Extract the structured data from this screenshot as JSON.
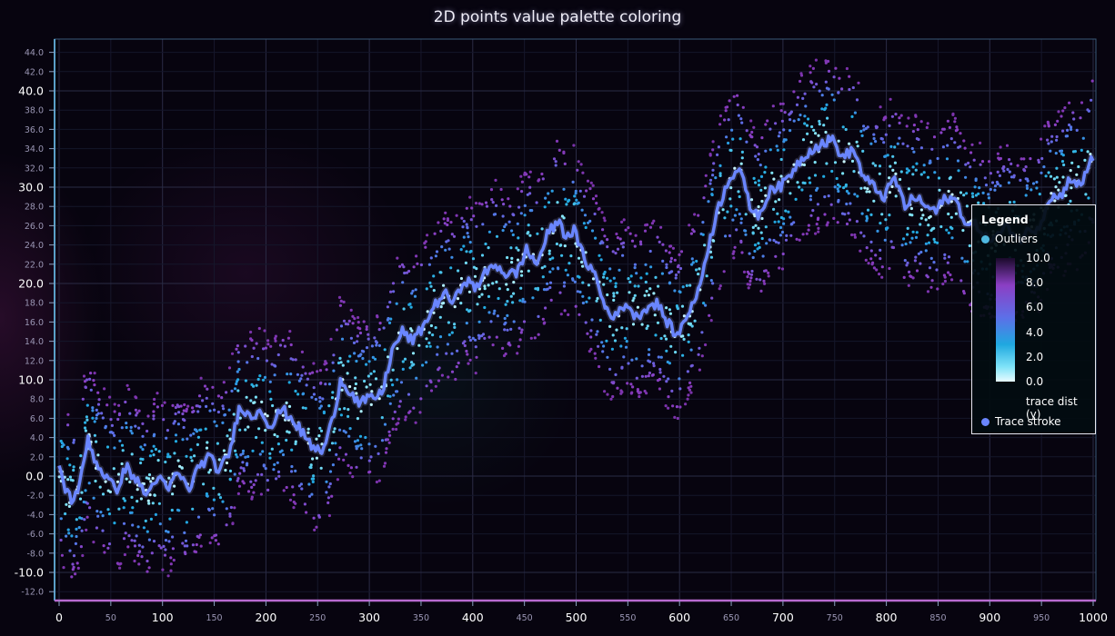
{
  "chart_data": {
    "type": "scatter",
    "title": "2D points value palette coloring",
    "xlim": [
      0,
      1000
    ],
    "ylim": [
      -13,
      46
    ],
    "x_ticks_major": [
      0,
      100,
      200,
      300,
      400,
      500,
      600,
      700,
      800,
      900,
      1000
    ],
    "x_ticks_minor": [
      50,
      150,
      250,
      350,
      450,
      550,
      650,
      750,
      850,
      950
    ],
    "y_ticks_major": [
      -10.0,
      0.0,
      10.0,
      20.0,
      30.0,
      40.0
    ],
    "y_ticks_minor": [
      -12.0,
      -8.0,
      -6.0,
      -4.0,
      -2.0,
      2.0,
      4.0,
      6.0,
      8.0,
      12.0,
      14.0,
      16.0,
      18.0,
      22.0,
      24.0,
      26.0,
      28.0,
      32.0,
      34.0,
      36.0,
      38.0,
      42.0,
      44.0
    ],
    "grid": true,
    "series": [
      {
        "name": "Outliers",
        "kind": "scatter",
        "color": "#4fb8e0",
        "spread": 9,
        "point_count": 2600
      },
      {
        "name": "Trace stroke",
        "kind": "line",
        "color": "#6a86ff",
        "trace": {
          "x": [
            0,
            5,
            12,
            20,
            28,
            35,
            45,
            55,
            65,
            75,
            85,
            95,
            105,
            115,
            125,
            135,
            145,
            155,
            165,
            175,
            185,
            195,
            205,
            215,
            225,
            235,
            245,
            255,
            265,
            272,
            280,
            290,
            300,
            312,
            322,
            332,
            342,
            352,
            362,
            372,
            382,
            392,
            402,
            412,
            422,
            432,
            442,
            452,
            462,
            472,
            482,
            490,
            498,
            508,
            518,
            528,
            538,
            548,
            558,
            568,
            578,
            588,
            598,
            608,
            618,
            628,
            638,
            648,
            658,
            668,
            678,
            688,
            698,
            708,
            718,
            728,
            738,
            748,
            758,
            768,
            778,
            788,
            798,
            808,
            818,
            828,
            838,
            848,
            858,
            868,
            878,
            888,
            898,
            908,
            918,
            928,
            938,
            948,
            958,
            968,
            978,
            988,
            998
          ],
          "y": [
            1,
            -1,
            -2.5,
            -1,
            4,
            1.5,
            0,
            -1.5,
            1,
            -0.5,
            -2,
            0,
            -1.5,
            0.5,
            -1.5,
            1,
            2,
            0.5,
            2.5,
            7.5,
            6,
            7,
            5,
            7,
            6,
            4.5,
            3,
            2.5,
            6,
            10,
            9,
            7.5,
            8,
            8.5,
            13,
            15,
            14,
            15.5,
            17.5,
            19,
            18,
            20.5,
            19.5,
            21,
            22,
            21,
            21,
            23.5,
            22,
            25,
            26.5,
            25,
            25.5,
            22.5,
            21,
            17.5,
            16.5,
            18,
            16.5,
            17.5,
            18,
            16,
            14.5,
            17,
            19,
            24,
            28,
            31,
            32,
            28,
            27,
            30,
            30,
            31.5,
            33,
            34,
            34.5,
            35,
            33,
            34,
            31,
            30,
            29,
            31,
            28,
            29,
            28,
            27.5,
            29,
            28.5,
            26,
            26,
            24.5,
            25,
            26,
            24.5,
            25.5,
            26,
            29,
            29,
            31,
            30,
            33
          ]
        }
      }
    ],
    "palette": {
      "label": "trace dist (y)",
      "min": 0.0,
      "max": 10.0,
      "ticks": [
        "10.0",
        "8.0",
        "6.0",
        "4.0",
        "2.0",
        "0.0"
      ],
      "colors": [
        "#e8fbff",
        "#7fe3f8",
        "#1fa8e0",
        "#5d6fe8",
        "#8b3fc4",
        "#1a0a2a"
      ]
    }
  },
  "legend": {
    "title": "Legend",
    "outliers_label": "Outliers",
    "outliers_color": "#4fb8e0",
    "trace_label": "Trace stroke",
    "trace_color": "#6a86ff",
    "palette_caption": "trace dist (y)",
    "palette_ticks": [
      "10.0",
      "8.0",
      "6.0",
      "4.0",
      "2.0",
      "0.0"
    ]
  }
}
